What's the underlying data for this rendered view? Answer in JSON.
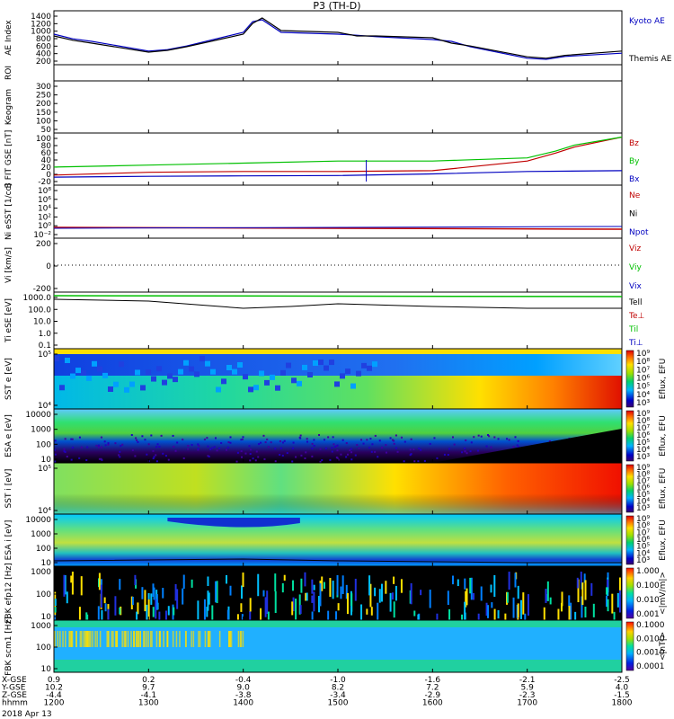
{
  "title": "P3 (TH-D)",
  "date_label": "2018 Apr 13",
  "chart_data": [
    {
      "id": "ae",
      "type": "line",
      "ylabel": "AE Index",
      "ylim": [
        0,
        1500
      ],
      "yticks": [
        "1400",
        "1200",
        "1000",
        "800",
        "600",
        "400",
        "200"
      ],
      "legend": [
        {
          "label": "Kyoto AE",
          "color": "#0000c0"
        },
        {
          "label": "Themis AE",
          "color": "#000000"
        }
      ],
      "series": [
        {
          "name": "Kyoto AE",
          "color": "#0000c0",
          "x": [
            1200,
            1220,
            1240,
            1300,
            1320,
            1340,
            1400,
            1410,
            1420,
            1440,
            1500,
            1520,
            1540,
            1600,
            1620,
            1640,
            1700,
            1720,
            1740,
            1800
          ],
          "y": [
            850,
            720,
            650,
            380,
            420,
            520,
            900,
            1200,
            1250,
            900,
            850,
            820,
            780,
            700,
            650,
            500,
            180,
            150,
            230,
            320
          ]
        },
        {
          "name": "Themis AE",
          "color": "#000000",
          "x": [
            1200,
            1220,
            1240,
            1300,
            1320,
            1340,
            1400,
            1410,
            1420,
            1440,
            1500,
            1520,
            1540,
            1600,
            1620,
            1640,
            1700,
            1720,
            1740,
            1800
          ],
          "y": [
            800,
            680,
            600,
            350,
            400,
            500,
            850,
            1150,
            1300,
            950,
            900,
            800,
            800,
            750,
            600,
            520,
            220,
            180,
            260,
            380
          ]
        }
      ]
    },
    {
      "id": "roi",
      "type": "line",
      "ylabel": "ROI",
      "yticks": []
    },
    {
      "id": "keogram",
      "type": "line",
      "ylabel": "Keogram",
      "yticks": [
        "300",
        "250",
        "200",
        "150",
        "100",
        "50"
      ]
    },
    {
      "id": "b",
      "type": "line",
      "ylabel": "B FIT GSE [nT]",
      "ylim": [
        -20,
        110
      ],
      "yticks": [
        "100",
        "80",
        "60",
        "40",
        "20",
        "0",
        "-20"
      ],
      "legend": [
        {
          "label": "Bz",
          "color": "#c00000"
        },
        {
          "label": "By",
          "color": "#00c000"
        },
        {
          "label": "Bx",
          "color": "#0000c0"
        }
      ],
      "series": [
        {
          "name": "Bz",
          "color": "#c00000",
          "x": [
            1200,
            1300,
            1400,
            1500,
            1600,
            1700,
            1730,
            1750,
            1800
          ],
          "y": [
            5,
            12,
            14,
            14,
            16,
            40,
            60,
            75,
            100
          ]
        },
        {
          "name": "By",
          "color": "#00c000",
          "x": [
            1200,
            1300,
            1400,
            1500,
            1600,
            1700,
            1730,
            1750,
            1800
          ],
          "y": [
            25,
            30,
            35,
            40,
            40,
            48,
            65,
            80,
            100
          ]
        },
        {
          "name": "Bx",
          "color": "#0000c0",
          "x": [
            1200,
            1300,
            1400,
            1500,
            1600,
            1700,
            1800
          ],
          "y": [
            0,
            2,
            3,
            4,
            8,
            14,
            16
          ]
        }
      ]
    },
    {
      "id": "n",
      "type": "line",
      "ylabel": "Ni eSST [1/cc]",
      "yticks": [
        "10⁸",
        "10⁶",
        "10⁴",
        "10²",
        "10⁰",
        "10⁻²"
      ],
      "legend": [
        {
          "label": "Ne",
          "color": "#c00000"
        },
        {
          "label": "Ni",
          "color": "#000000"
        },
        {
          "label": "Npot",
          "color": "#0000c0"
        }
      ]
    },
    {
      "id": "v",
      "type": "line",
      "ylabel": "Vi [km/s]",
      "ylim": [
        -300,
        300
      ],
      "yticks": [
        "200",
        "0",
        "-200"
      ],
      "legend": [
        {
          "label": "Viz",
          "color": "#c00000"
        },
        {
          "label": "Viy",
          "color": "#00c000"
        },
        {
          "label": "Vix",
          "color": "#0000c0"
        }
      ]
    },
    {
      "id": "t",
      "type": "line",
      "ylabel": "Ti eSE [eV]",
      "yticks": [
        "1000.0",
        "100.0",
        "10.0",
        "1.0",
        "0.1"
      ],
      "legend": [
        {
          "label": "Tell",
          "color": "#000000"
        },
        {
          "label": "Te⊥",
          "color": "#c00000"
        },
        {
          "label": "Til",
          "color": "#00c000"
        },
        {
          "label": "Ti⊥",
          "color": "#0000c0"
        }
      ]
    },
    {
      "id": "sst_e",
      "type": "heatmap",
      "ylabel": "SST e [eV]",
      "yticks": [
        "10⁵",
        "10⁴"
      ],
      "cbar_label": "Eflux, EFU",
      "cbar_ticks": [
        "10⁹",
        "10⁸",
        "10⁷",
        "10⁶",
        "10⁵",
        "10⁴",
        "10³"
      ]
    },
    {
      "id": "esa_e",
      "type": "heatmap",
      "ylabel": "ESA e [eV]",
      "yticks": [
        "10000",
        "1000",
        "100",
        "10"
      ],
      "cbar_label": "Eflux, EFU",
      "cbar_ticks": [
        "10⁹",
        "10⁸",
        "10⁷",
        "10⁶",
        "10⁵",
        "10⁴",
        "10³"
      ]
    },
    {
      "id": "sst_i",
      "type": "heatmap",
      "ylabel": "SST i [eV]",
      "yticks": [
        "10⁵",
        "10⁴"
      ],
      "cbar_label": "Eflux, EFU",
      "cbar_ticks": [
        "10⁹",
        "10⁸",
        "10⁷",
        "10⁶",
        "10⁵",
        "10⁴",
        "10³"
      ]
    },
    {
      "id": "esa_i",
      "type": "heatmap",
      "ylabel": "ESA i [eV]",
      "yticks": [
        "10000",
        "1000",
        "100",
        "10"
      ],
      "cbar_label": "Eflux, EFU",
      "cbar_ticks": [
        "10⁹",
        "10⁸",
        "10⁷",
        "10⁶",
        "10⁵",
        "10⁴",
        "10³"
      ]
    },
    {
      "id": "fbk_e",
      "type": "heatmap",
      "ylabel": "FBK efp12 [Hz]",
      "yticks": [
        "1000",
        "100",
        "10"
      ],
      "cbar_label": "<|mV/m|>",
      "cbar_ticks": [
        "1.000",
        "0.100",
        "0.010",
        "0.001"
      ]
    },
    {
      "id": "fbk_b",
      "type": "heatmap",
      "ylabel": "FBK scm1 [Hz]",
      "yticks": [
        "1000",
        "100",
        "10"
      ],
      "cbar_label": "<|nT|>",
      "cbar_ticks": [
        "0.1000",
        "0.0100",
        "0.0010",
        "0.0001"
      ]
    }
  ],
  "xaxis": {
    "row_labels": [
      "X-GSE",
      "Y-GSE",
      "Z-GSE",
      "hhmm"
    ],
    "columns": [
      [
        "0.9",
        "10.2",
        "-4.4",
        "1200"
      ],
      [
        "0.2",
        "9.7",
        "-4.1",
        "1300"
      ],
      [
        "-0.4",
        "9.0",
        "-3.8",
        "1400"
      ],
      [
        "-1.0",
        "8.2",
        "-3.4",
        "1500"
      ],
      [
        "-1.6",
        "7.2",
        "-2.9",
        "1600"
      ],
      [
        "-2.1",
        "5.9",
        "-2.3",
        "1700"
      ],
      [
        "-2.5",
        "4.0",
        "-1.5",
        "1800"
      ]
    ]
  }
}
